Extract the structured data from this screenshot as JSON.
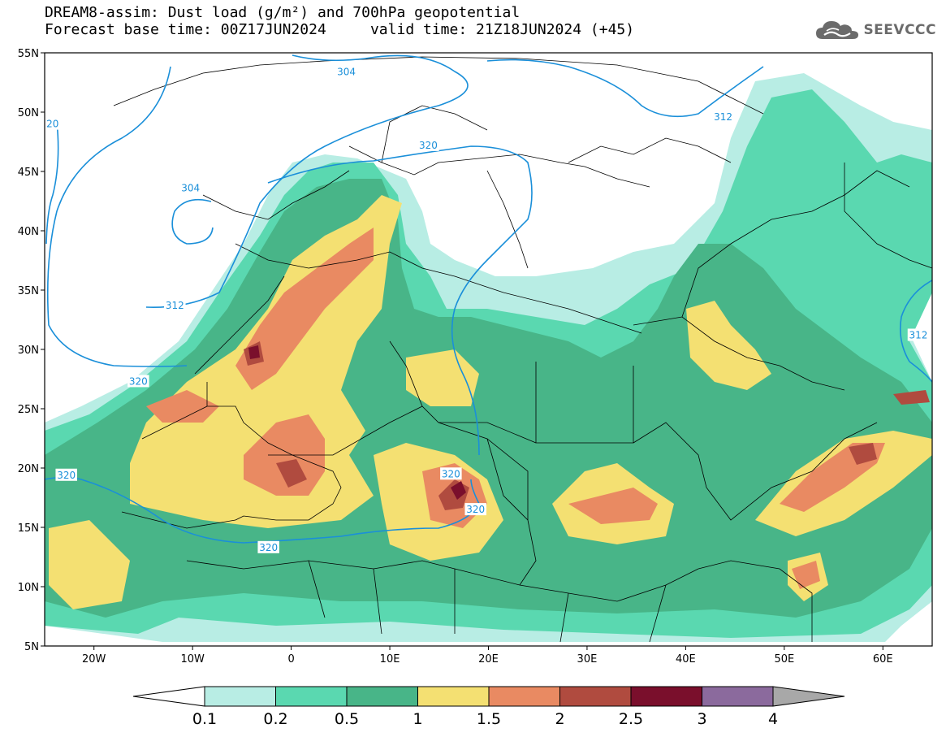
{
  "header": {
    "title_line1": "DREAM8-assim: Dust load (g/m²) and 700hPa geopotential",
    "title_line2": "Forecast base time: 00Z17JUN2024     valid time: 21Z18JUN2024 (+45)"
  },
  "logo": {
    "text": "SEEVCCC",
    "icon": "cloud-icon"
  },
  "map": {
    "lon_range": [
      -25,
      65
    ],
    "lat_range": [
      5,
      55
    ],
    "lat_ticks": [
      {
        "value": 55,
        "label": "55N"
      },
      {
        "value": 50,
        "label": "50N"
      },
      {
        "value": 45,
        "label": "45N"
      },
      {
        "value": 40,
        "label": "40N"
      },
      {
        "value": 35,
        "label": "35N"
      },
      {
        "value": 30,
        "label": "30N"
      },
      {
        "value": 25,
        "label": "25N"
      },
      {
        "value": 20,
        "label": "20N"
      },
      {
        "value": 15,
        "label": "15N"
      },
      {
        "value": 10,
        "label": "10N"
      },
      {
        "value": 5,
        "label": "5N"
      }
    ],
    "lon_ticks": [
      {
        "value": -20,
        "label": "20W"
      },
      {
        "value": -10,
        "label": "10W"
      },
      {
        "value": 0,
        "label": "0"
      },
      {
        "value": 10,
        "label": "10E"
      },
      {
        "value": 20,
        "label": "20E"
      },
      {
        "value": 30,
        "label": "30E"
      },
      {
        "value": 40,
        "label": "40E"
      },
      {
        "value": 50,
        "label": "50E"
      },
      {
        "value": 60,
        "label": "60E"
      }
    ],
    "contour_color": "#1a8fd9",
    "contour_labels": [
      {
        "text": "304",
        "lon": 5.6,
        "lat": 53.4
      },
      {
        "text": "304",
        "lon": -10.2,
        "lat": 43.6
      },
      {
        "text": "312",
        "lon": 43.8,
        "lat": 49.6
      },
      {
        "text": "320",
        "lon": 13.9,
        "lat": 47.2
      },
      {
        "text": "20",
        "lon": -24.2,
        "lat": 49.0
      },
      {
        "text": "312",
        "lon": -11.8,
        "lat": 33.7
      },
      {
        "text": "320",
        "lon": -15.5,
        "lat": 27.3
      },
      {
        "text": "312",
        "lon": 63.6,
        "lat": 31.2
      },
      {
        "text": "320",
        "lon": -22.8,
        "lat": 19.4
      },
      {
        "text": "320",
        "lon": 16.2,
        "lat": 19.5
      },
      {
        "text": "320",
        "lon": 18.7,
        "lat": 16.5
      },
      {
        "text": "320",
        "lon": -2.3,
        "lat": 13.3
      }
    ]
  },
  "colorbar": {
    "levels": [
      "0.1",
      "0.2",
      "0.5",
      "1",
      "1.5",
      "2",
      "2.5",
      "3",
      "4"
    ],
    "colors": [
      "#b8ede4",
      "#5ad8b0",
      "#48b588",
      "#f4e072",
      "#e98a62",
      "#b04b3f",
      "#7a0f2c",
      "#8b6a9d"
    ],
    "under_color": "#ffffff",
    "over_color": "#a8a8a8"
  }
}
